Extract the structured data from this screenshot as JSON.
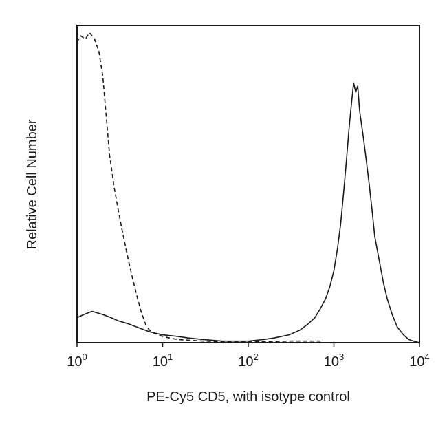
{
  "chart_data": {
    "type": "line",
    "title": "",
    "xlabel": "PE-Cy5 CD5, with isotype control",
    "ylabel": "Relative Cell Number",
    "x_scale": "log",
    "xlim": [
      1,
      10000
    ],
    "ylim": [
      0,
      100
    ],
    "grid": false,
    "legend": "none",
    "x_ticks": [
      {
        "value": 1,
        "base": "10",
        "exp": "0"
      },
      {
        "value": 10,
        "base": "10",
        "exp": "1"
      },
      {
        "value": 100,
        "base": "10",
        "exp": "2"
      },
      {
        "value": 1000,
        "base": "10",
        "exp": "3"
      },
      {
        "value": 10000,
        "base": "10",
        "exp": "4"
      }
    ],
    "series": [
      {
        "style": "dashed",
        "color": "#1a1a1a",
        "x": [
          1.0,
          1.1,
          1.25,
          1.4,
          1.6,
          1.8,
          2.0,
          2.2,
          2.4,
          2.7,
          3.0,
          3.3,
          3.6,
          4.0,
          4.5,
          5.0,
          5.6,
          6.3,
          7.0,
          8.0,
          9.0,
          10,
          12,
          15,
          20,
          30,
          50,
          80,
          150,
          300,
          700
        ],
        "values": [
          96,
          98,
          97,
          99,
          97,
          93,
          85,
          72,
          60,
          50,
          43,
          37,
          32,
          26,
          20,
          15,
          10,
          6,
          4,
          3,
          2.5,
          2,
          1.5,
          1,
          0.8,
          0.5,
          0.3,
          0.2,
          0.3,
          0.5,
          0.5
        ]
      },
      {
        "style": "solid",
        "color": "#1a1a1a",
        "x": [
          1.0,
          1.2,
          1.5,
          2.0,
          2.5,
          3.0,
          4.0,
          5.0,
          7.0,
          10,
          15,
          20,
          30,
          50,
          80,
          100,
          150,
          200,
          300,
          400,
          500,
          600,
          700,
          800,
          900,
          1000,
          1100,
          1200,
          1300,
          1400,
          1500,
          1600,
          1700,
          1800,
          1900,
          2000,
          2200,
          2400,
          2600,
          2800,
          3000,
          3400,
          3800,
          4200,
          4800,
          5500,
          6500,
          7500,
          8500,
          10000
        ],
        "values": [
          8,
          9,
          10,
          9,
          8,
          7,
          6,
          5,
          3.5,
          2.5,
          2,
          1.5,
          1,
          0.5,
          0.5,
          0.5,
          1,
          1.5,
          2.5,
          4,
          6,
          8,
          11,
          14,
          18,
          23,
          30,
          38,
          48,
          58,
          68,
          76,
          83,
          80,
          82,
          74,
          66,
          58,
          50,
          42,
          34,
          26,
          19,
          14,
          9,
          5,
          2.5,
          1,
          0.5,
          0
        ]
      }
    ]
  }
}
